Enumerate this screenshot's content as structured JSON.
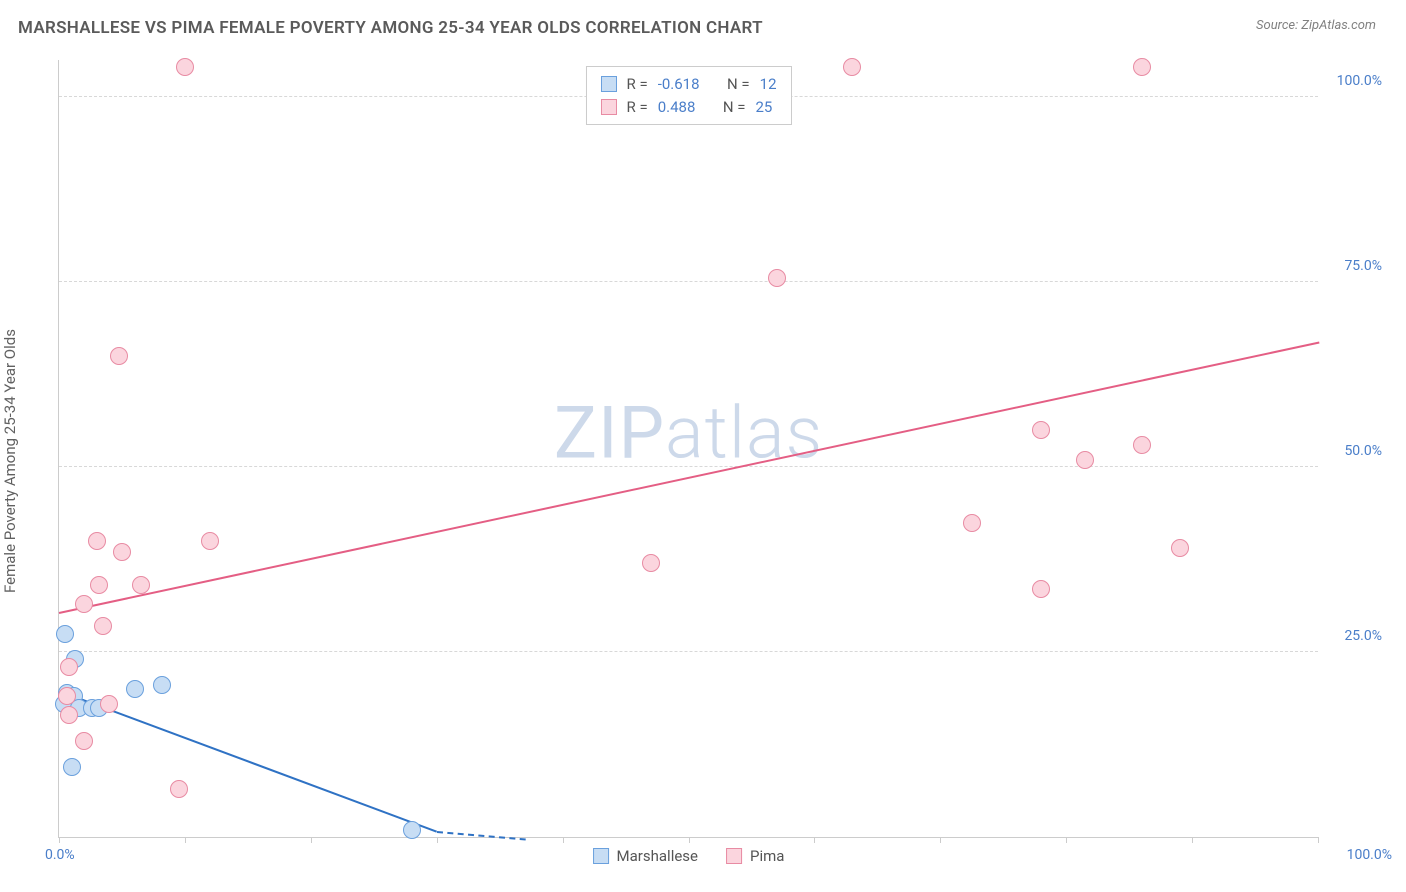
{
  "header": {
    "title": "MARSHALLESE VS PIMA FEMALE POVERTY AMONG 25-34 YEAR OLDS CORRELATION CHART",
    "source": "Source: ZipAtlas.com"
  },
  "ylabel": "Female Poverty Among 25-34 Year Olds",
  "watermark_1": "ZIP",
  "watermark_2": "atlas",
  "chart": {
    "type": "scatter",
    "xlim": [
      0,
      100
    ],
    "ylim": [
      0,
      105
    ],
    "x_tick_positions": [
      0,
      10,
      20,
      30,
      40,
      50,
      60,
      70,
      80,
      90,
      100
    ],
    "x_tick_label_left": "0.0%",
    "x_tick_label_right": "100.0%",
    "y_gridlines": [
      {
        "value": 25,
        "label": "25.0%"
      },
      {
        "value": 50,
        "label": "50.0%"
      },
      {
        "value": 75,
        "label": "75.0%"
      },
      {
        "value": 100,
        "label": "100.0%"
      }
    ],
    "grid_color": "#d8d8d8",
    "axis_color": "#cccccc",
    "tick_label_color": "#4a7ec9",
    "point_radius": 9,
    "series": [
      {
        "name": "Marshallese",
        "fill": "#c7ddf4",
        "stroke": "#6aa0dd",
        "line_color": "#2f72c4",
        "points": [
          {
            "x": 0.5,
            "y": 27.5
          },
          {
            "x": 1.3,
            "y": 24.0
          },
          {
            "x": 0.6,
            "y": 19.5
          },
          {
            "x": 1.2,
            "y": 19.0
          },
          {
            "x": 0.4,
            "y": 18.0
          },
          {
            "x": 1.6,
            "y": 17.5
          },
          {
            "x": 2.6,
            "y": 17.5
          },
          {
            "x": 3.2,
            "y": 17.5
          },
          {
            "x": 6.0,
            "y": 20.0
          },
          {
            "x": 8.2,
            "y": 20.5
          },
          {
            "x": 1.0,
            "y": 9.5
          },
          {
            "x": 28.0,
            "y": 1.0
          }
        ],
        "trend": {
          "x1": 0,
          "y1": 20.0,
          "x2": 30,
          "y2": 1.0,
          "dash_to_x": 37
        }
      },
      {
        "name": "Pima",
        "fill": "#fbd5de",
        "stroke": "#e88ba3",
        "line_color": "#e45e84",
        "points": [
          {
            "x": 10.0,
            "y": 104.0
          },
          {
            "x": 63.0,
            "y": 104.0
          },
          {
            "x": 86.0,
            "y": 104.0
          },
          {
            "x": 57.0,
            "y": 75.5
          },
          {
            "x": 4.8,
            "y": 65.0
          },
          {
            "x": 78.0,
            "y": 55.0
          },
          {
            "x": 86.0,
            "y": 53.0
          },
          {
            "x": 81.5,
            "y": 51.0
          },
          {
            "x": 72.5,
            "y": 42.5
          },
          {
            "x": 3.0,
            "y": 40.0
          },
          {
            "x": 5.0,
            "y": 38.5
          },
          {
            "x": 12.0,
            "y": 40.0
          },
          {
            "x": 89.0,
            "y": 39.0
          },
          {
            "x": 47.0,
            "y": 37.0
          },
          {
            "x": 3.2,
            "y": 34.0
          },
          {
            "x": 6.5,
            "y": 34.0
          },
          {
            "x": 78.0,
            "y": 33.5
          },
          {
            "x": 2.0,
            "y": 31.5
          },
          {
            "x": 3.5,
            "y": 28.5
          },
          {
            "x": 0.8,
            "y": 23.0
          },
          {
            "x": 0.6,
            "y": 19.0
          },
          {
            "x": 4.0,
            "y": 18.0
          },
          {
            "x": 0.8,
            "y": 16.5
          },
          {
            "x": 2.0,
            "y": 13.0
          },
          {
            "x": 9.5,
            "y": 6.5
          }
        ],
        "trend": {
          "x1": 0,
          "y1": 30.5,
          "x2": 100,
          "y2": 67.0
        }
      }
    ],
    "stats_box": {
      "rows": [
        {
          "swatch_fill": "#c7ddf4",
          "swatch_stroke": "#6aa0dd",
          "r_label": "R =",
          "r_value": "-0.618",
          "n_label": "N =",
          "n_value": "12"
        },
        {
          "swatch_fill": "#fbd5de",
          "swatch_stroke": "#e88ba3",
          "r_label": "R =",
          "r_value": "0.488",
          "n_label": "N =",
          "n_value": "25"
        }
      ]
    },
    "bottom_legend": [
      {
        "swatch_fill": "#c7ddf4",
        "swatch_stroke": "#6aa0dd",
        "label": "Marshallese"
      },
      {
        "swatch_fill": "#fbd5de",
        "swatch_stroke": "#e88ba3",
        "label": "Pima"
      }
    ]
  }
}
